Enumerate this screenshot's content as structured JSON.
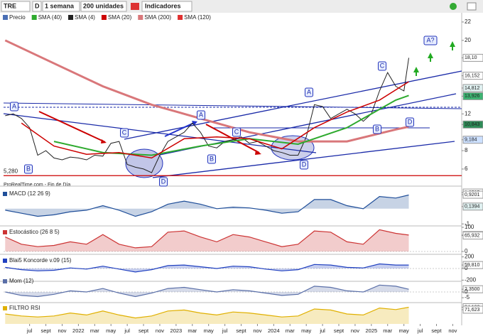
{
  "toolbar": {
    "symbol": "TRE",
    "mode": "D",
    "period": "1 semana",
    "units": "200 unidades",
    "indicators": "Indicadores"
  },
  "legend": [
    {
      "text": "Precio",
      "color": "#4a6fb5"
    },
    {
      "text": "SMA (40)",
      "color": "#2eaa2e"
    },
    {
      "text": "SMA (4)",
      "color": "#222222"
    },
    {
      "text": "SMA (20)",
      "color": "#cc0000"
    },
    {
      "text": "SMA (200)",
      "color": "#d9777a"
    },
    {
      "text": "SMA (120)",
      "color": "#e03030"
    }
  ],
  "footer_label": "ProRealTime.com - Fin de Día",
  "chart_data": [
    {
      "type": "line",
      "xlim": [
        -0.2,
        56.1
      ],
      "ylim": [
        4.45,
        23
      ],
      "yticks": [
        22,
        20,
        {
          "value": 18.1,
          "label": "18,10"
        },
        {
          "value": 16.152,
          "label": "16,152"
        },
        {
          "value": 14.812,
          "label": "14,812"
        },
        {
          "value": 13.926,
          "label": "13,926"
        },
        12,
        {
          "value": 10.843,
          "label": "10,843"
        },
        {
          "value": 9.184,
          "label": "9,184"
        },
        8,
        6
      ],
      "xticks": [
        {
          "value": 3,
          "label": "jul"
        },
        {
          "value": 5,
          "label": "sept"
        },
        {
          "value": 7,
          "label": "nov"
        },
        {
          "value": 9,
          "label": "2022"
        },
        {
          "value": 11,
          "label": "mar"
        },
        {
          "value": 13,
          "label": "may"
        },
        {
          "value": 15,
          "label": "jul"
        },
        {
          "value": 17,
          "label": "sept"
        },
        {
          "value": 19,
          "label": "nov"
        },
        {
          "value": 21,
          "label": "2023"
        },
        {
          "value": 23,
          "label": "mar"
        },
        {
          "value": 25,
          "label": "may"
        },
        {
          "value": 27,
          "label": "jul"
        },
        {
          "value": 29,
          "label": "sept"
        },
        {
          "value": 31,
          "label": "nov"
        },
        {
          "value": 33,
          "label": "2024"
        },
        {
          "value": 35,
          "label": "mar"
        },
        {
          "value": 37,
          "label": "may"
        },
        {
          "value": 39,
          "label": "jul"
        },
        {
          "value": 41,
          "label": "sept"
        },
        {
          "value": 43,
          "label": "nov"
        },
        {
          "value": 45,
          "label": "2025"
        },
        {
          "value": 47,
          "label": "mar"
        },
        {
          "value": 49,
          "label": "may"
        },
        {
          "value": 51,
          "label": "jul"
        },
        {
          "value": 53,
          "label": "sept"
        },
        {
          "value": 55,
          "label": "nov"
        }
      ],
      "support": {
        "value": 5.28,
        "label": "5,280",
        "color": "#cc0000"
      },
      "annotations": [
        "A",
        "B",
        "C",
        "D",
        "A",
        "B",
        "C",
        "D",
        "A",
        "B",
        "C",
        "D",
        "A?"
      ],
      "series": [
        {
          "color": "#222222",
          "width": 1,
          "x": [
            0,
            1,
            2,
            3,
            4,
            5,
            6,
            7,
            8,
            9,
            10,
            11,
            12,
            13,
            14,
            15,
            16,
            17,
            18,
            19,
            20,
            21,
            22,
            23,
            24,
            25,
            26,
            27,
            28,
            29,
            30,
            31,
            32,
            33,
            34,
            35,
            36,
            37,
            38,
            39,
            40,
            41,
            42,
            43,
            44,
            45,
            46,
            47,
            48,
            49,
            49.6
          ],
          "values": [
            11.8,
            12.0,
            11.5,
            10.5,
            7.5,
            8.0,
            7.2,
            7.0,
            7.3,
            7.2,
            7.0,
            7.5,
            7.4,
            8.8,
            9.0,
            6.5,
            6.2,
            6.0,
            5.6,
            7.5,
            9.0,
            9.5,
            10.0,
            11.0,
            10.0,
            8.5,
            8.3,
            9.0,
            9.2,
            9.5,
            8.8,
            9.0,
            8.5,
            8.0,
            7.8,
            7.5,
            7.5,
            9.5,
            13.0,
            12.8,
            11.5,
            12.0,
            12.5,
            12.0,
            11.2,
            12.0,
            14.5,
            16.5,
            15.0,
            14.5,
            18.1
          ]
        },
        {
          "color": "#d9777a",
          "width": 3,
          "x": [
            0,
            6,
            12,
            18,
            24,
            30,
            36,
            42,
            48,
            49.6
          ],
          "values": [
            20,
            17.5,
            15,
            13,
            11.5,
            10,
            9,
            9,
            10.3,
            10.6
          ]
        },
        {
          "color": "#2eaa2e",
          "width": 2,
          "x": [
            6,
            12,
            18,
            24,
            30,
            36,
            42,
            48,
            49.6
          ],
          "values": [
            9,
            7.8,
            7.5,
            8.5,
            9.3,
            8.7,
            10.5,
            13.5,
            14
          ]
        },
        {
          "color": "#cc0000",
          "width": 1.5,
          "x": [
            2,
            6,
            10,
            14,
            18,
            22,
            26,
            30,
            34,
            38,
            42,
            46,
            49.6
          ],
          "values": [
            11,
            8.5,
            7.6,
            7.8,
            7.2,
            9.3,
            9.5,
            9.3,
            8.2,
            10.5,
            12.2,
            13.5,
            15.5
          ]
        }
      ]
    },
    {
      "type": "line",
      "title": "MACD (12 26 9)",
      "ylim": [
        -1.13,
        1.39
      ],
      "yticks": [
        {
          "value": 1.0595,
          "label": "1,0595"
        },
        {
          "value": 0.9201,
          "label": "0,9201"
        },
        {
          "value": 0.1394,
          "label": "0,1394"
        },
        -1
      ],
      "series": [
        {
          "color": "#1f4e99",
          "x": [
            0,
            2,
            4,
            6,
            8,
            10,
            12,
            14,
            16,
            18,
            20,
            22,
            24,
            26,
            28,
            30,
            32,
            34,
            36,
            38,
            40,
            42,
            44,
            46,
            48,
            49.6
          ],
          "values": [
            -0.1,
            -0.3,
            -0.5,
            -0.4,
            -0.2,
            -0.1,
            0.2,
            -0.1,
            -0.5,
            -0.2,
            0.3,
            0.5,
            0.3,
            0.0,
            0.1,
            0.05,
            -0.1,
            -0.3,
            -0.2,
            0.6,
            0.6,
            0.2,
            0.0,
            0.8,
            0.7,
            0.9
          ]
        }
      ]
    },
    {
      "type": "line",
      "title": "Estocástico (26 8 5)",
      "ylim": [
        0,
        100
      ],
      "yticks": [
        100,
        {
          "value": 68.002,
          "label": "68,002"
        },
        {
          "value": 65.932,
          "label": "65,932"
        },
        0
      ],
      "series": [
        {
          "color": "#cc3333",
          "x": [
            0,
            2,
            4,
            6,
            8,
            10,
            12,
            14,
            16,
            18,
            20,
            22,
            24,
            26,
            28,
            30,
            32,
            34,
            36,
            38,
            40,
            42,
            44,
            46,
            48,
            49.6
          ],
          "values": [
            60,
            30,
            20,
            25,
            40,
            30,
            70,
            30,
            15,
            20,
            80,
            85,
            60,
            40,
            70,
            60,
            40,
            20,
            30,
            85,
            80,
            40,
            30,
            90,
            75,
            68
          ]
        }
      ]
    },
    {
      "type": "line",
      "title": "Blai5 Koncorde v.09 (15)",
      "ylim": [
        -220,
        220
      ],
      "yticks": [
        200,
        {
          "value": 59.81,
          "label": "59,810"
        },
        0,
        -200
      ],
      "series": [
        {
          "color": "#2040c0",
          "x": [
            0,
            2,
            4,
            6,
            8,
            10,
            12,
            14,
            16,
            18,
            20,
            22,
            24,
            26,
            28,
            30,
            32,
            34,
            36,
            38,
            40,
            42,
            44,
            46,
            48,
            49.6
          ],
          "values": [
            20,
            -20,
            -40,
            -30,
            10,
            -10,
            40,
            -10,
            -60,
            -20,
            50,
            60,
            30,
            0,
            40,
            30,
            -10,
            -40,
            -20,
            70,
            60,
            20,
            10,
            80,
            60,
            60
          ]
        }
      ]
    },
    {
      "type": "line",
      "title": "Mom (12)",
      "ylim": [
        -8,
        8
      ],
      "yticks": [
        {
          "value": 2.35,
          "label": "2,3500"
        },
        0,
        -5
      ],
      "series": [
        {
          "color": "#5a6fa8",
          "x": [
            0,
            2,
            4,
            6,
            8,
            10,
            12,
            14,
            16,
            18,
            20,
            22,
            24,
            26,
            28,
            30,
            32,
            34,
            36,
            38,
            40,
            42,
            44,
            46,
            48,
            49.6
          ],
          "values": [
            0,
            -3,
            -4,
            -2,
            1,
            0,
            3,
            -1,
            -4,
            -1,
            3,
            4,
            2,
            0,
            2,
            1,
            -1,
            -3,
            -2,
            5,
            4,
            1,
            0,
            6,
            5,
            2.35
          ]
        }
      ]
    },
    {
      "type": "line",
      "title": "FILTRO RSI",
      "ylim": [
        0,
        100
      ],
      "yticks": [
        {
          "value": 84.102,
          "label": "84,102"
        },
        {
          "value": 71.623,
          "label": "71,623"
        }
      ],
      "series": [
        {
          "color": "#e0b000",
          "x": [
            0,
            2,
            4,
            6,
            8,
            10,
            12,
            14,
            16,
            18,
            20,
            22,
            24,
            26,
            28,
            30,
            32,
            34,
            36,
            38,
            40,
            42,
            44,
            46,
            48,
            49.6
          ],
          "values": [
            50,
            40,
            35,
            40,
            55,
            45,
            65,
            45,
            30,
            40,
            65,
            70,
            55,
            45,
            60,
            55,
            45,
            35,
            40,
            75,
            70,
            50,
            45,
            80,
            72,
            84
          ]
        }
      ]
    }
  ]
}
